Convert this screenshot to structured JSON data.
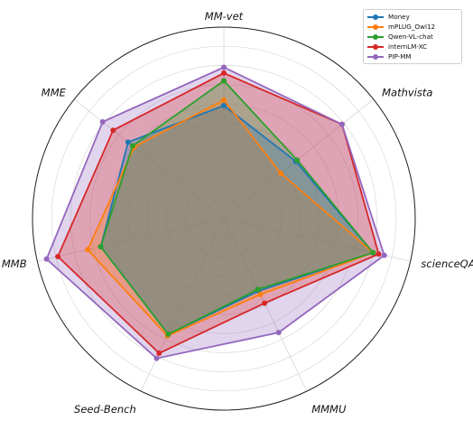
{
  "chart_data": {
    "type": "radar",
    "axes": [
      "MM-vet",
      "Mathvista",
      "scienceQA-img",
      "MMMU",
      "Seed-Bench",
      "MMB",
      "MME"
    ],
    "rlim": [
      0,
      1
    ],
    "grid": true,
    "legend_position": "top-right",
    "series": [
      {
        "name": "Money",
        "color": "#1f77b4",
        "values": [
          0.59,
          0.48,
          0.8,
          0.42,
          0.67,
          0.66,
          0.64
        ]
      },
      {
        "name": "mPLUG_Owl12",
        "color": "#ff7f0e",
        "values": [
          0.62,
          0.38,
          0.8,
          0.44,
          0.68,
          0.73,
          0.6
        ]
      },
      {
        "name": "Qwen-VL-chat",
        "color": "#2ca02c",
        "values": [
          0.72,
          0.49,
          0.8,
          0.41,
          0.67,
          0.66,
          0.61
        ]
      },
      {
        "name": "internLM-XC",
        "color": "#d62728",
        "values": [
          0.76,
          0.79,
          0.83,
          0.49,
          0.78,
          0.89,
          0.74
        ]
      },
      {
        "name": "PIP-MM",
        "color": "#9467bd",
        "values": [
          0.79,
          0.79,
          0.86,
          0.66,
          0.81,
          0.95,
          0.81
        ]
      }
    ]
  }
}
